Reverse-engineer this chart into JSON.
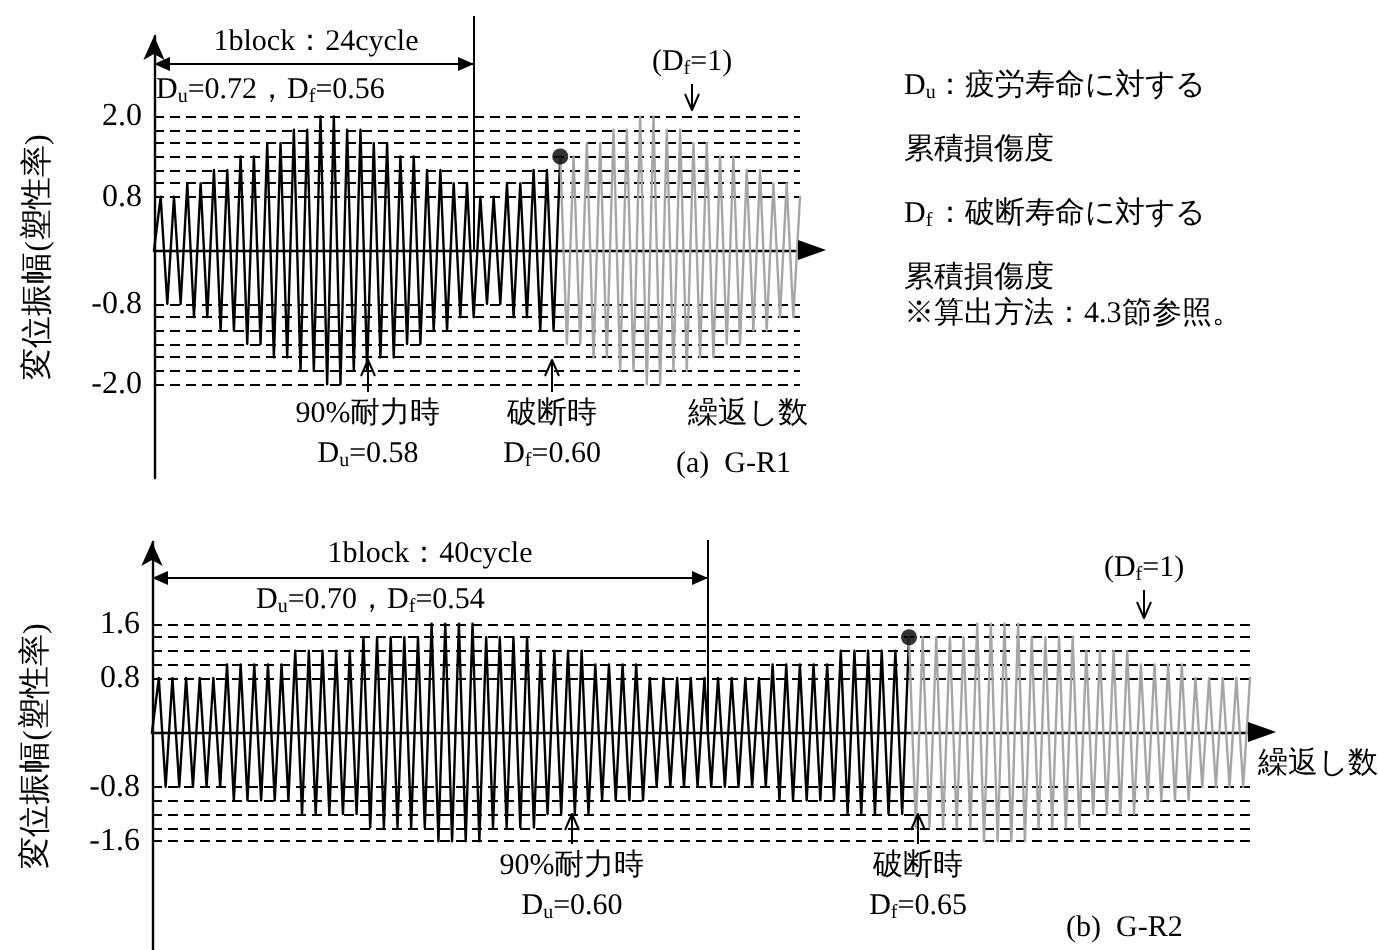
{
  "chart_data": [
    {
      "type": "line",
      "xlabel": "繰返し数",
      "ylabel": "変位振幅(塑性率)",
      "ylim": [
        -3.4,
        3.2
      ],
      "tick_labels": "y",
      "grid": "y",
      "categories": [
        null,
        null,
        null,
        null,
        null,
        null,
        null,
        null,
        null,
        null,
        null,
        null,
        null,
        null,
        null,
        null,
        null,
        null,
        null,
        null,
        null,
        null,
        null,
        null,
        null,
        null,
        null,
        null,
        null,
        null,
        null,
        null,
        null,
        null,
        null,
        null,
        null,
        null,
        null,
        null,
        null,
        null,
        null,
        null,
        null,
        null,
        null,
        null,
        null,
        null,
        null,
        null,
        null,
        null,
        null,
        null,
        null,
        null,
        null,
        null,
        null,
        null,
        null,
        null,
        null,
        null,
        null,
        null,
        null,
        null,
        null,
        null,
        null,
        null,
        null,
        null,
        null,
        null,
        null,
        null,
        null,
        null,
        null,
        null,
        null,
        null,
        null,
        null,
        null,
        null,
        null,
        null,
        null,
        null,
        null,
        null,
        null,
        null
      ],
      "yticks": [
        {
          "value": -2,
          "label": "-2.0"
        },
        {
          "value": -1.8,
          "label": null
        },
        {
          "value": -1.6,
          "label": null
        },
        {
          "value": -1.4,
          "label": null
        },
        {
          "value": -1.2,
          "label": null
        },
        {
          "value": -1,
          "label": null
        },
        -0.8,
        0.8,
        {
          "value": 1,
          "label": null
        },
        {
          "value": 1.2,
          "label": null
        },
        {
          "value": 1.4,
          "label": null
        },
        {
          "value": 1.6,
          "label": null
        },
        {
          "value": 1.8,
          "label": null
        },
        {
          "value": 2,
          "label": "2.0"
        }
      ],
      "series": [
        {
          "color": "#000000",
          "values": [
            0,
            0.8,
            -0.8,
            0.8,
            -0.8,
            1.0,
            -1.0,
            1.0,
            -1.0,
            1.2,
            -1.2,
            1.2,
            -1.2,
            1.4,
            -1.4,
            1.4,
            -1.4,
            1.6,
            -1.6,
            1.6,
            -1.6,
            1.8,
            -1.8,
            1.8,
            -1.8,
            2.0,
            -2.0,
            2.0,
            -2.0,
            1.8,
            -1.8,
            1.8,
            -1.8,
            1.6,
            -1.6,
            1.6,
            -1.6,
            1.4,
            -1.4,
            1.4,
            -1.4,
            1.2,
            -1.2,
            1.2,
            -1.2,
            1.0,
            -1.0,
            1.0,
            -1.0,
            0.8,
            -0.8,
            0.8,
            -0.8,
            1.0,
            -1.0,
            1.0,
            -1.0,
            1.2,
            -1.2,
            1.2,
            -1.2,
            1.4,
            null,
            null,
            null,
            null,
            null,
            null,
            null,
            null,
            null,
            null,
            null,
            null,
            null,
            null,
            null,
            null,
            null,
            null,
            null,
            null,
            null,
            null,
            null,
            null,
            null,
            null,
            null,
            null,
            null,
            null,
            null,
            null,
            null,
            null,
            null,
            null
          ]
        },
        {
          "color": "#a6a6a6",
          "values": [
            null,
            null,
            null,
            null,
            null,
            null,
            null,
            null,
            null,
            null,
            null,
            null,
            null,
            null,
            null,
            null,
            null,
            null,
            null,
            null,
            null,
            null,
            null,
            null,
            null,
            null,
            null,
            null,
            null,
            null,
            null,
            null,
            null,
            null,
            null,
            null,
            null,
            null,
            null,
            null,
            null,
            null,
            null,
            null,
            null,
            null,
            null,
            null,
            null,
            null,
            null,
            null,
            null,
            null,
            null,
            null,
            null,
            null,
            null,
            null,
            null,
            1.4,
            -1.4,
            1.4,
            -1.4,
            1.6,
            -1.6,
            1.6,
            -1.6,
            1.8,
            -1.8,
            1.8,
            -1.8,
            2.0,
            -2.0,
            2.0,
            -2.0,
            1.8,
            -1.8,
            1.8,
            -1.8,
            1.6,
            -1.6,
            1.6,
            -1.6,
            1.4,
            -1.4,
            1.4,
            -1.4,
            1.2,
            -1.2,
            1.2,
            -1.2,
            1.0,
            -1.0,
            1.0,
            -1.0,
            0.8
          ]
        },
        {
          "type": "scatter",
          "color": "#000000",
          "values": [
            null,
            null,
            null,
            null,
            null,
            null,
            null,
            null,
            null,
            null,
            null,
            null,
            null,
            null,
            null,
            null,
            null,
            null,
            null,
            null,
            null,
            null,
            null,
            null,
            null,
            null,
            null,
            null,
            null,
            null,
            null,
            null,
            null,
            null,
            null,
            null,
            null,
            null,
            null,
            null,
            null,
            null,
            null,
            null,
            null,
            null,
            null,
            null,
            null,
            null,
            null,
            null,
            null,
            null,
            null,
            null,
            null,
            null,
            null,
            null,
            null,
            1.4,
            null,
            null,
            null,
            null,
            null,
            null,
            null,
            null,
            null,
            null,
            null,
            null,
            null,
            null,
            null,
            null,
            null,
            null,
            null,
            null,
            null,
            null,
            null,
            null,
            null,
            null,
            null,
            null,
            null,
            null,
            null,
            null,
            null,
            null,
            null,
            null
          ]
        }
      ],
      "annotations": [
        "1block：24cycle",
        "D$_{u}$=0.72，D$_{f}$=0.56",
        "D$_{u}$：疲労寿命に対する累積損傷度",
        "D$_{f}$：破断寿命に対する累積損傷度",
        "※算出方法：4.3節参照。",
        "(a)  G-R1",
        "(D$_{f}$=1)",
        "90%耐力時\nD$_{u}$=0.58",
        "破断時\nD$_{f}$=0.60"
      ]
    },
    {
      "type": "line",
      "xlabel": "繰返し数",
      "ylabel": "変位振幅(塑性率)",
      "ylim": [
        -3.2,
        2.8
      ],
      "tick_labels": "y",
      "grid": "y",
      "categories": [
        null,
        null,
        null,
        null,
        null,
        null,
        null,
        null,
        null,
        null,
        null,
        null,
        null,
        null,
        null,
        null,
        null,
        null,
        null,
        null,
        null,
        null,
        null,
        null,
        null,
        null,
        null,
        null,
        null,
        null,
        null,
        null,
        null,
        null,
        null,
        null,
        null,
        null,
        null,
        null,
        null,
        null,
        null,
        null,
        null,
        null,
        null,
        null,
        null,
        null,
        null,
        null,
        null,
        null,
        null,
        null,
        null,
        null,
        null,
        null,
        null,
        null,
        null,
        null,
        null,
        null,
        null,
        null,
        null,
        null,
        null,
        null,
        null,
        null,
        null,
        null,
        null,
        null,
        null,
        null,
        null,
        null,
        null,
        null,
        null,
        null,
        null,
        null,
        null,
        null,
        null,
        null,
        null,
        null,
        null,
        null,
        null,
        null,
        null,
        null,
        null,
        null,
        null,
        null,
        null,
        null,
        null,
        null,
        null,
        null,
        null,
        null,
        null,
        null,
        null,
        null,
        null,
        null,
        null,
        null,
        null,
        null,
        null,
        null,
        null,
        null,
        null,
        null,
        null,
        null,
        null,
        null,
        null,
        null,
        null,
        null,
        null,
        null,
        null,
        null,
        null,
        null,
        null,
        null,
        null,
        null,
        null,
        null,
        null,
        null,
        null,
        null,
        null,
        null,
        null,
        null,
        null,
        null,
        null,
        null,
        null,
        null
      ],
      "yticks": [
        {
          "value": -1.6,
          "label": "-1.6"
        },
        {
          "value": -1.4,
          "label": null
        },
        {
          "value": -1.2,
          "label": null
        },
        {
          "value": -1,
          "label": null
        },
        -0.8,
        0.8,
        {
          "value": 1,
          "label": null
        },
        {
          "value": 1.2,
          "label": null
        },
        {
          "value": 1.4,
          "label": null
        },
        1.6
      ],
      "series": [
        {
          "color": "#000000",
          "values": [
            0,
            0.8,
            -0.8,
            0.8,
            -0.8,
            0.8,
            -0.8,
            0.8,
            -0.8,
            0.8,
            -0.8,
            1.0,
            -1.0,
            1.0,
            -1.0,
            1.0,
            -1.0,
            1.0,
            -1.0,
            1.0,
            -1.0,
            1.2,
            -1.2,
            1.2,
            -1.2,
            1.2,
            -1.2,
            1.2,
            -1.2,
            1.2,
            -1.2,
            1.4,
            -1.4,
            1.4,
            -1.4,
            1.4,
            -1.4,
            1.4,
            -1.4,
            1.4,
            -1.4,
            1.6,
            -1.6,
            1.6,
            -1.6,
            1.6,
            -1.6,
            1.6,
            -1.6,
            1.4,
            -1.4,
            1.4,
            -1.4,
            1.4,
            -1.4,
            1.4,
            -1.4,
            1.2,
            -1.2,
            1.2,
            -1.2,
            1.2,
            -1.2,
            1.2,
            -1.2,
            1.0,
            -1.0,
            1.0,
            -1.0,
            1.0,
            -1.0,
            1.0,
            -1.0,
            0.8,
            -0.8,
            0.8,
            -0.8,
            0.8,
            -0.8,
            0.8,
            -0.8,
            0.8,
            -0.8,
            0.8,
            -0.8,
            0.8,
            -0.8,
            0.8,
            -0.8,
            0.8,
            -0.8,
            1.0,
            -1.0,
            1.0,
            -1.0,
            1.0,
            -1.0,
            1.0,
            -1.0,
            1.0,
            -1.0,
            1.2,
            -1.2,
            1.2,
            -1.2,
            1.2,
            -1.2,
            1.2,
            -1.2,
            1.2,
            -1.2,
            1.4,
            null,
            null,
            null,
            null,
            null,
            null,
            null,
            null,
            null,
            null,
            null,
            null,
            null,
            null,
            null,
            null,
            null,
            null,
            null,
            null,
            null,
            null,
            null,
            null,
            null,
            null,
            null,
            null,
            null,
            null,
            null,
            null,
            null,
            null,
            null,
            null,
            null,
            null,
            null,
            null,
            null,
            null,
            null,
            null,
            null,
            null,
            null,
            null,
            null,
            null
          ]
        },
        {
          "color": "#a6a6a6",
          "values": [
            null,
            null,
            null,
            null,
            null,
            null,
            null,
            null,
            null,
            null,
            null,
            null,
            null,
            null,
            null,
            null,
            null,
            null,
            null,
            null,
            null,
            null,
            null,
            null,
            null,
            null,
            null,
            null,
            null,
            null,
            null,
            null,
            null,
            null,
            null,
            null,
            null,
            null,
            null,
            null,
            null,
            null,
            null,
            null,
            null,
            null,
            null,
            null,
            null,
            null,
            null,
            null,
            null,
            null,
            null,
            null,
            null,
            null,
            null,
            null,
            null,
            null,
            null,
            null,
            null,
            null,
            null,
            null,
            null,
            null,
            null,
            null,
            null,
            null,
            null,
            null,
            null,
            null,
            null,
            null,
            null,
            null,
            null,
            null,
            null,
            null,
            null,
            null,
            null,
            null,
            null,
            null,
            null,
            null,
            null,
            null,
            null,
            null,
            null,
            null,
            null,
            null,
            null,
            null,
            null,
            null,
            null,
            null,
            null,
            null,
            null,
            1.4,
            -1.4,
            1.4,
            -1.4,
            1.4,
            -1.4,
            1.4,
            -1.4,
            1.4,
            -1.4,
            1.6,
            -1.6,
            1.6,
            -1.6,
            1.6,
            -1.6,
            1.6,
            -1.6,
            1.4,
            -1.4,
            1.4,
            -1.4,
            1.4,
            -1.4,
            1.4,
            -1.4,
            1.2,
            -1.2,
            1.2,
            -1.2,
            1.2,
            -1.2,
            1.2,
            -1.2,
            1.0,
            -1.0,
            1.0,
            -1.0,
            1.0,
            -1.0,
            1.0,
            -1.0,
            0.8,
            -0.8,
            0.8,
            -0.8,
            0.8,
            -0.8,
            0.8,
            -0.8,
            0.8
          ]
        },
        {
          "type": "scatter",
          "color": "#000000",
          "values": [
            null,
            null,
            null,
            null,
            null,
            null,
            null,
            null,
            null,
            null,
            null,
            null,
            null,
            null,
            null,
            null,
            null,
            null,
            null,
            null,
            null,
            null,
            null,
            null,
            null,
            null,
            null,
            null,
            null,
            null,
            null,
            null,
            null,
            null,
            null,
            null,
            null,
            null,
            null,
            null,
            null,
            null,
            null,
            null,
            null,
            null,
            null,
            null,
            null,
            null,
            null,
            null,
            null,
            null,
            null,
            null,
            null,
            null,
            null,
            null,
            null,
            null,
            null,
            null,
            null,
            null,
            null,
            null,
            null,
            null,
            null,
            null,
            null,
            null,
            null,
            null,
            null,
            null,
            null,
            null,
            null,
            null,
            null,
            null,
            null,
            null,
            null,
            null,
            null,
            null,
            null,
            null,
            null,
            null,
            null,
            null,
            null,
            null,
            null,
            null,
            null,
            null,
            null,
            null,
            null,
            null,
            null,
            null,
            null,
            null,
            null,
            1.4,
            null,
            null,
            null,
            null,
            null,
            null,
            null,
            null,
            null,
            null,
            null,
            null,
            null,
            null,
            null,
            null,
            null,
            null,
            null,
            null,
            null,
            null,
            null,
            null,
            null,
            null,
            null,
            null,
            null,
            null,
            null,
            null,
            null,
            null,
            null,
            null,
            null,
            null,
            null,
            null,
            null,
            null,
            null,
            null,
            null,
            null,
            null,
            null,
            null,
            null
          ]
        }
      ],
      "annotations": [
        "1block：40cycle",
        "D$_{u}$=0.70，D$_{f}$=0.54",
        "(b)  G-R2",
        "(D$_{f}$=1)",
        "90%耐力時\nD$_{u}$=0.60",
        "破断時\nD$_{f}$=0.65"
      ]
    }
  ]
}
